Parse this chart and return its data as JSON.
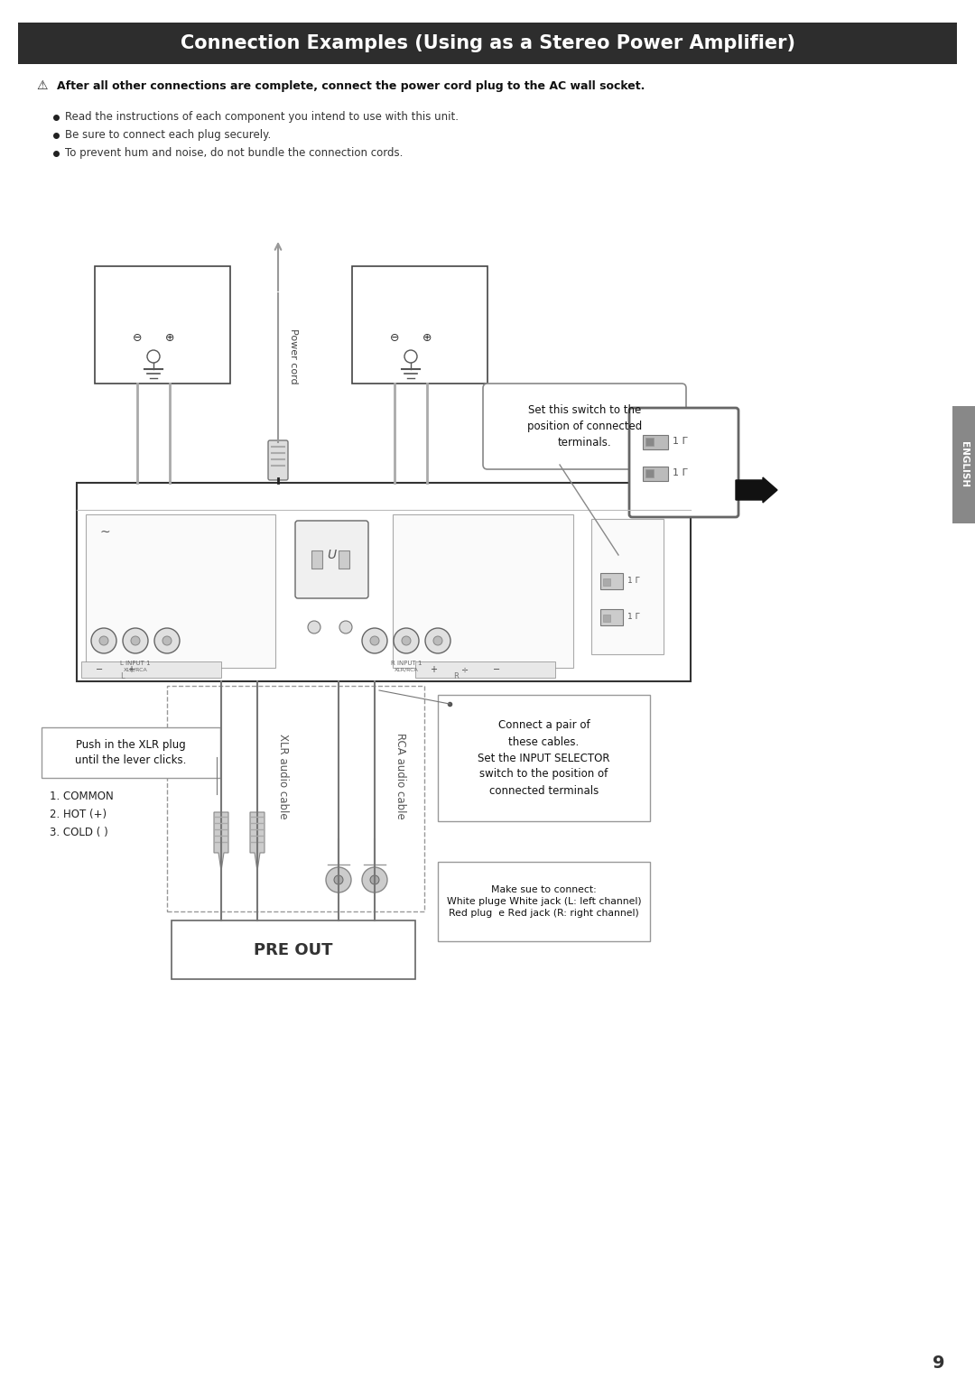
{
  "title": "Connection Examples (Using as a Stereo Power Amplifier)",
  "title_bg": "#2d2d2d",
  "title_color": "#ffffff",
  "title_fontsize": 15,
  "page_bg": "#ffffff",
  "warning_text": "After all other connections are complete, connect the power cord plug to the AC wall socket.",
  "bullet_points": [
    "Read the instructions of each component you intend to use with this unit.",
    "Be sure to connect each plug securely.",
    "To prevent hum and noise, do not bundle the connection cords."
  ],
  "callout_switch": "Set this switch to the\nposition of connected\nterminals.",
  "callout_cables": "Connect a pair of\nthese cables.\nSet the INPUT SELECTOR\nswitch to the position of\nconnected terminals",
  "callout_xlr_push": "Push in the XLR plug\nuntil the lever clicks.",
  "xlr_pin_label": "1. COMMON\n2. HOT (+)\n3. COLD ( )",
  "callout_sure": "Make suе to conneсt:\nWhite pluɡe White jack (L: left channel)\nRed plug  e Rеd jack (R: right channel)",
  "label_power_cord": "Power cord",
  "label_xlr_cable": "XLR audio cable",
  "label_rca_cable": "RCA audio cable",
  "label_pre_out": "PRE OUT",
  "label_english": "ENGLISH",
  "page_number": "9"
}
